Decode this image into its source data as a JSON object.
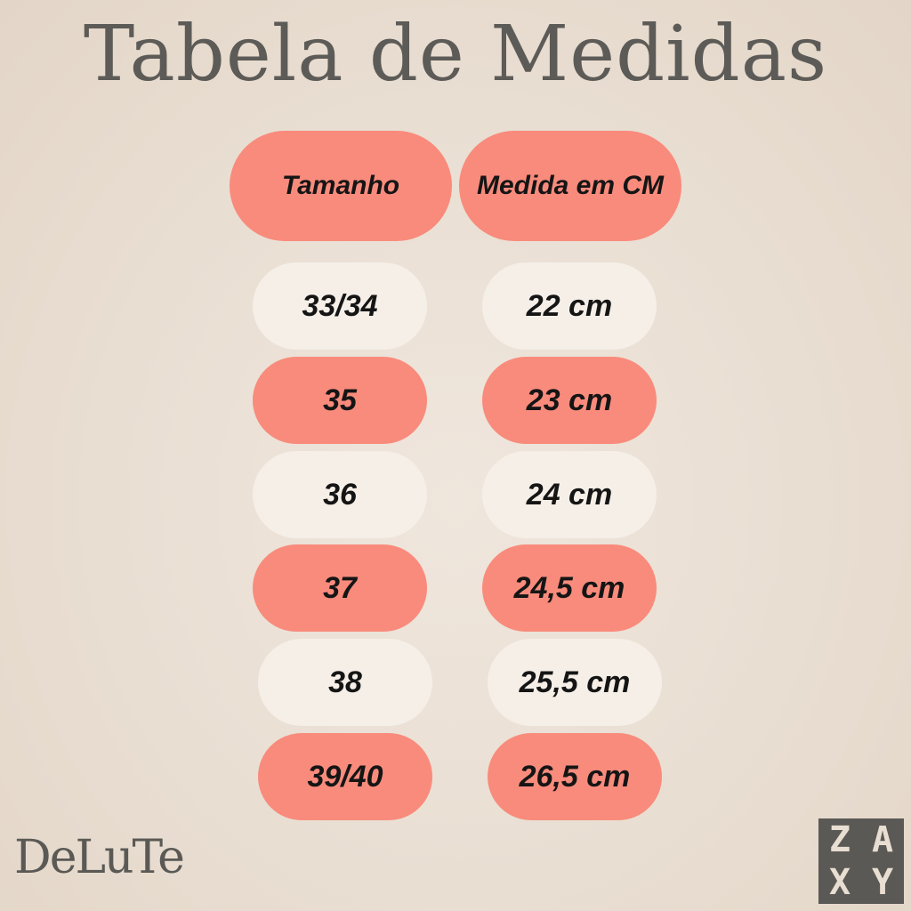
{
  "title": "Tabela de Medidas",
  "headers": {
    "size": "Tamanho",
    "measure": "Medida em CM"
  },
  "rows": [
    {
      "size": "33/34",
      "measure": "22 cm",
      "color": "cream"
    },
    {
      "size": "35",
      "measure": "23 cm",
      "color": "coral"
    },
    {
      "size": "36",
      "measure": "24 cm",
      "color": "cream"
    },
    {
      "size": "37",
      "measure": "24,5 cm",
      "color": "coral"
    },
    {
      "size": "38",
      "measure": "25,5 cm",
      "color": "cream"
    },
    {
      "size": "39/40",
      "measure": "26,5 cm",
      "color": "coral"
    }
  ],
  "logos": {
    "delute": "DeLuTe",
    "zaxy": [
      "Z",
      "A",
      "X",
      "Y"
    ]
  },
  "colors": {
    "coral": "#f98b7c",
    "cream": "#f5efe8",
    "text": "#151515",
    "title": "#5d5b57"
  }
}
